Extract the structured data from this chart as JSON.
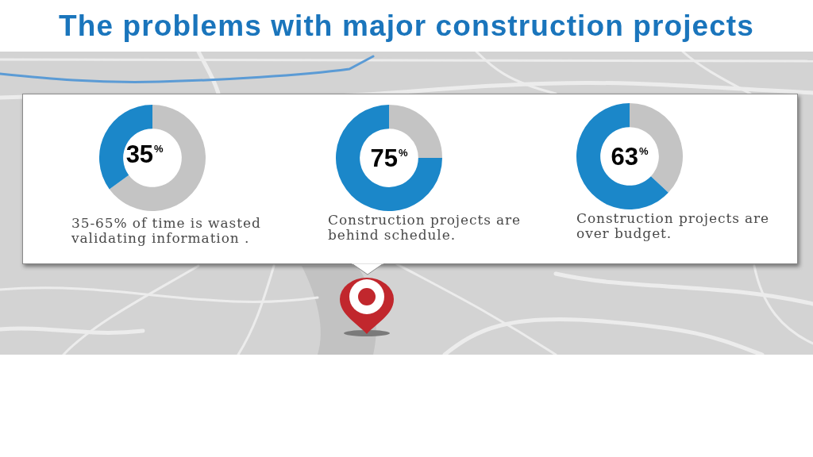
{
  "chart_data": [
    {
      "type": "other",
      "title": "The problems with major construction projects"
    },
    {
      "type": "donut",
      "categories": [
        null,
        null
      ],
      "values": [
        65,
        35
      ],
      "colors": [
        "#c4c4c4",
        "#1b87c9"
      ],
      "value_labels": [
        null,
        "35$^{%}$"
      ],
      "annotations": [
        "35-65% of time is wasted validating information ."
      ]
    },
    {
      "type": "donut",
      "categories": [
        null,
        null
      ],
      "values": [
        25,
        75
      ],
      "colors": [
        "#c4c4c4",
        "#1b87c9"
      ],
      "value_labels": [
        null,
        "75$^{%}$"
      ],
      "annotations": [
        "Construction projects are behind schedule."
      ]
    },
    {
      "type": "donut",
      "categories": [
        null,
        null
      ],
      "values": [
        37,
        63
      ],
      "colors": [
        "#c4c4c4",
        "#1b87c9"
      ],
      "value_labels": [
        null,
        "63$^{%}$"
      ],
      "annotations": [
        "Construction projects are over budget."
      ]
    }
  ]
}
